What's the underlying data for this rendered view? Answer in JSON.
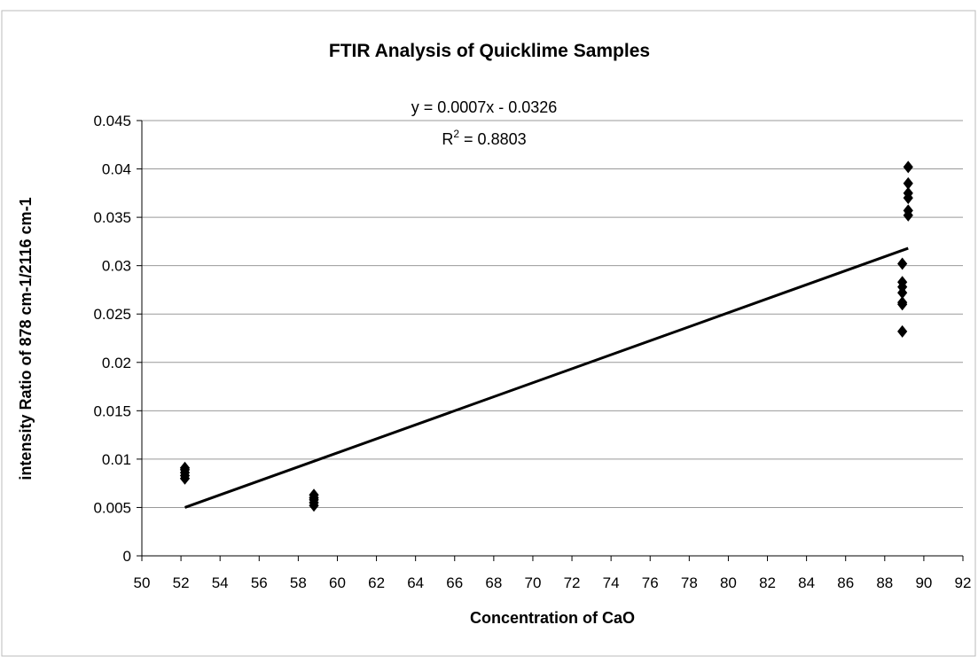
{
  "chart_data": {
    "type": "scatter",
    "title": "FTIR Analysis of Quicklime Samples",
    "x_label": "Concentration of CaO",
    "y_label": "intensity Ratio of 878 cm-1/2116 cm-1",
    "xlim": [
      50,
      92
    ],
    "xticks": [
      50,
      52,
      54,
      56,
      58,
      60,
      62,
      64,
      66,
      68,
      70,
      72,
      74,
      76,
      78,
      80,
      82,
      84,
      86,
      88,
      90,
      92
    ],
    "ylim": [
      0,
      0.045
    ],
    "yticks": [
      0,
      0.005,
      0.01,
      0.015,
      0.02,
      0.025,
      0.03,
      0.035,
      0.04,
      0.045
    ],
    "grid": true,
    "series": [
      {
        "color": "#000000",
        "x": [
          52.2,
          52.2,
          52.2,
          52.2,
          52.2,
          58.8,
          58.8,
          58.8,
          58.8,
          58.8,
          88.9,
          88.9,
          88.9,
          88.9,
          88.9,
          88.9,
          88.9,
          89.2,
          89.2,
          89.2,
          89.2,
          89.2,
          89.2
        ],
        "y": [
          0.008,
          0.0083,
          0.0086,
          0.0089,
          0.0091,
          0.0052,
          0.0055,
          0.0058,
          0.006,
          0.0063,
          0.0302,
          0.0283,
          0.0278,
          0.0272,
          0.0262,
          0.026,
          0.0232,
          0.0402,
          0.0385,
          0.0375,
          0.037,
          0.0357,
          0.0352
        ]
      }
    ],
    "trendline": {
      "x": [
        52.2,
        89.2
      ],
      "y": [
        0.005,
        0.0318
      ],
      "color": "#000000",
      "equation": "y = 0.0007x - 0.0326",
      "r_squared": [
        "R",
        "2",
        " = 0.8803"
      ]
    }
  }
}
